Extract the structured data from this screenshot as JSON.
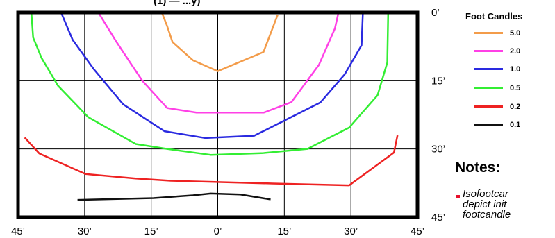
{
  "chart_data": {
    "type": "line",
    "title_fragment": "(1) — ...y)",
    "x_tick_labels": [
      "45’",
      "30’",
      "15’",
      "0’",
      "15’",
      "30’",
      "45’"
    ],
    "x_tick_values": [
      -45,
      -30,
      -15,
      0,
      15,
      30,
      45
    ],
    "y_tick_labels": [
      "0’",
      "15’",
      "30’",
      "45’"
    ],
    "y_tick_values": [
      0,
      15,
      30,
      45
    ],
    "xlim": [
      -45,
      45
    ],
    "ylim": [
      0,
      45
    ],
    "y_inverted": true,
    "grid": true,
    "legend_title": "Foot Candles",
    "legend_position": "right",
    "series": [
      {
        "name": "5.0",
        "color": "#f39c4a",
        "points": [
          [
            -12.6,
            0
          ],
          [
            -11.4,
            3.0
          ],
          [
            -10.2,
            6.5
          ],
          [
            -5.6,
            10.5
          ],
          [
            0,
            12.9
          ],
          [
            10.3,
            8.7
          ],
          [
            13.5,
            0.5
          ]
        ]
      },
      {
        "name": "2.0",
        "color": "#ff40e6",
        "points": [
          [
            -26.9,
            0
          ],
          [
            -23.0,
            6.2
          ],
          [
            -19.4,
            11.5
          ],
          [
            -17.0,
            15.0
          ],
          [
            -11.4,
            21.0
          ],
          [
            -4.8,
            22.0
          ],
          [
            10.4,
            22.0
          ],
          [
            16.6,
            19.7
          ],
          [
            22.8,
            11.5
          ],
          [
            26.4,
            3.5
          ],
          [
            27.2,
            0
          ]
        ]
      },
      {
        "name": "1.0",
        "color": "#2a2ae0",
        "points": [
          [
            -35.3,
            0
          ],
          [
            -32.7,
            6.0
          ],
          [
            -27.9,
            12.5
          ],
          [
            -21.3,
            20.2
          ],
          [
            -12.0,
            26.1
          ],
          [
            -2.8,
            27.6
          ],
          [
            8.2,
            27.1
          ],
          [
            23.1,
            19.8
          ],
          [
            28.6,
            13.6
          ],
          [
            32.4,
            7.2
          ],
          [
            32.7,
            0
          ]
        ]
      },
      {
        "name": "0.5",
        "color": "#33ee33",
        "points": [
          [
            -42.0,
            0
          ],
          [
            -41.6,
            5.5
          ],
          [
            -39.7,
            10.0
          ],
          [
            -36.0,
            16.1
          ],
          [
            -29.2,
            23.0
          ],
          [
            -18.5,
            28.9
          ],
          [
            -11.4,
            30.0
          ],
          [
            -1.6,
            31.3
          ],
          [
            10.3,
            30.9
          ],
          [
            20.2,
            30.0
          ],
          [
            29.6,
            25.3
          ],
          [
            36.0,
            18.2
          ],
          [
            38.2,
            11.0
          ],
          [
            38.4,
            0
          ]
        ]
      },
      {
        "name": "0.2",
        "color": "#ee2222",
        "points": [
          [
            -43.5,
            27.5
          ],
          [
            -40.2,
            31.0
          ],
          [
            -29.8,
            35.5
          ],
          [
            -18.5,
            36.5
          ],
          [
            -10.6,
            37.0
          ],
          [
            12.4,
            37.6
          ],
          [
            29.6,
            38.0
          ],
          [
            39.7,
            30.8
          ],
          [
            40.5,
            27.0
          ]
        ]
      },
      {
        "name": "0.1",
        "color": "#111111",
        "points": [
          [
            -31.6,
            41.2
          ],
          [
            -14.5,
            40.8
          ],
          [
            -5.6,
            40.2
          ],
          [
            -1.6,
            39.8
          ],
          [
            5.1,
            40.0
          ],
          [
            11.9,
            41.1
          ]
        ]
      }
    ]
  },
  "legend": {
    "title": "Foot Candles",
    "items": [
      {
        "label": "5.0",
        "color": "#f39c4a"
      },
      {
        "label": "2.0",
        "color": "#ff40e6"
      },
      {
        "label": "1.0",
        "color": "#2a2ae0"
      },
      {
        "label": "0.5",
        "color": "#33ee33"
      },
      {
        "label": "0.2",
        "color": "#ee2222"
      },
      {
        "label": "0.1",
        "color": "#111111"
      }
    ]
  },
  "notes": {
    "heading": "Notes:",
    "lines": [
      "Isofootcar",
      "depict init",
      "footcandle"
    ]
  }
}
